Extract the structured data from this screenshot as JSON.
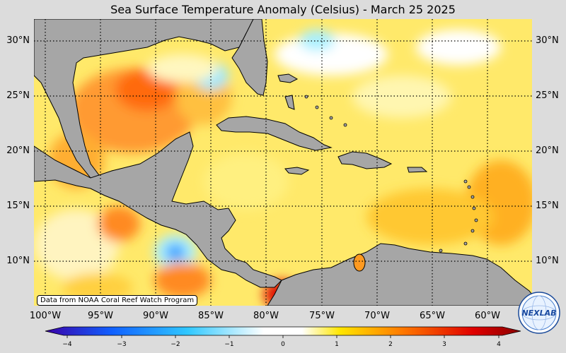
{
  "title": "Sea Surface Temperature Anomaly (Celsius) - March 25 2025",
  "credit": "Data from NOAA Coral Reef Watch Program",
  "logo_text": "NEXLAB",
  "lat_labels": [
    "30°N",
    "25°N",
    "20°N",
    "15°N",
    "10°N"
  ],
  "lon_labels": [
    "100°W",
    "95°W",
    "90°W",
    "85°W",
    "80°W",
    "75°W",
    "70°W",
    "65°W",
    "60°W"
  ],
  "colorbar": {
    "ticks": [
      "−4",
      "−3",
      "−2",
      "−1",
      "0",
      "1",
      "2",
      "3",
      "4"
    ],
    "range": [
      -4,
      4
    ],
    "colors": [
      "#3a00a8",
      "#1060ff",
      "#30c8ff",
      "#ffffff",
      "#ffe600",
      "#ff7a00",
      "#e00000",
      "#8a0000"
    ]
  },
  "colors": {
    "land": "#a6a6a6",
    "background": "#dcdcdc",
    "gridline": "#000000"
  },
  "chart_data": {
    "type": "heatmap",
    "title": "Sea Surface Temperature Anomaly (Celsius) - March 25 2025",
    "xlabel": "",
    "ylabel": "",
    "xlim": [
      -101,
      -57
    ],
    "ylim": [
      6,
      32
    ],
    "x_ticks": [
      "100°W",
      "95°W",
      "90°W",
      "85°W",
      "80°W",
      "75°W",
      "70°W",
      "65°W",
      "60°W"
    ],
    "y_ticks": [
      "30°N",
      "25°N",
      "20°N",
      "15°N",
      "10°N"
    ],
    "colorbar_range": [
      -4,
      4
    ],
    "grid": true
  }
}
